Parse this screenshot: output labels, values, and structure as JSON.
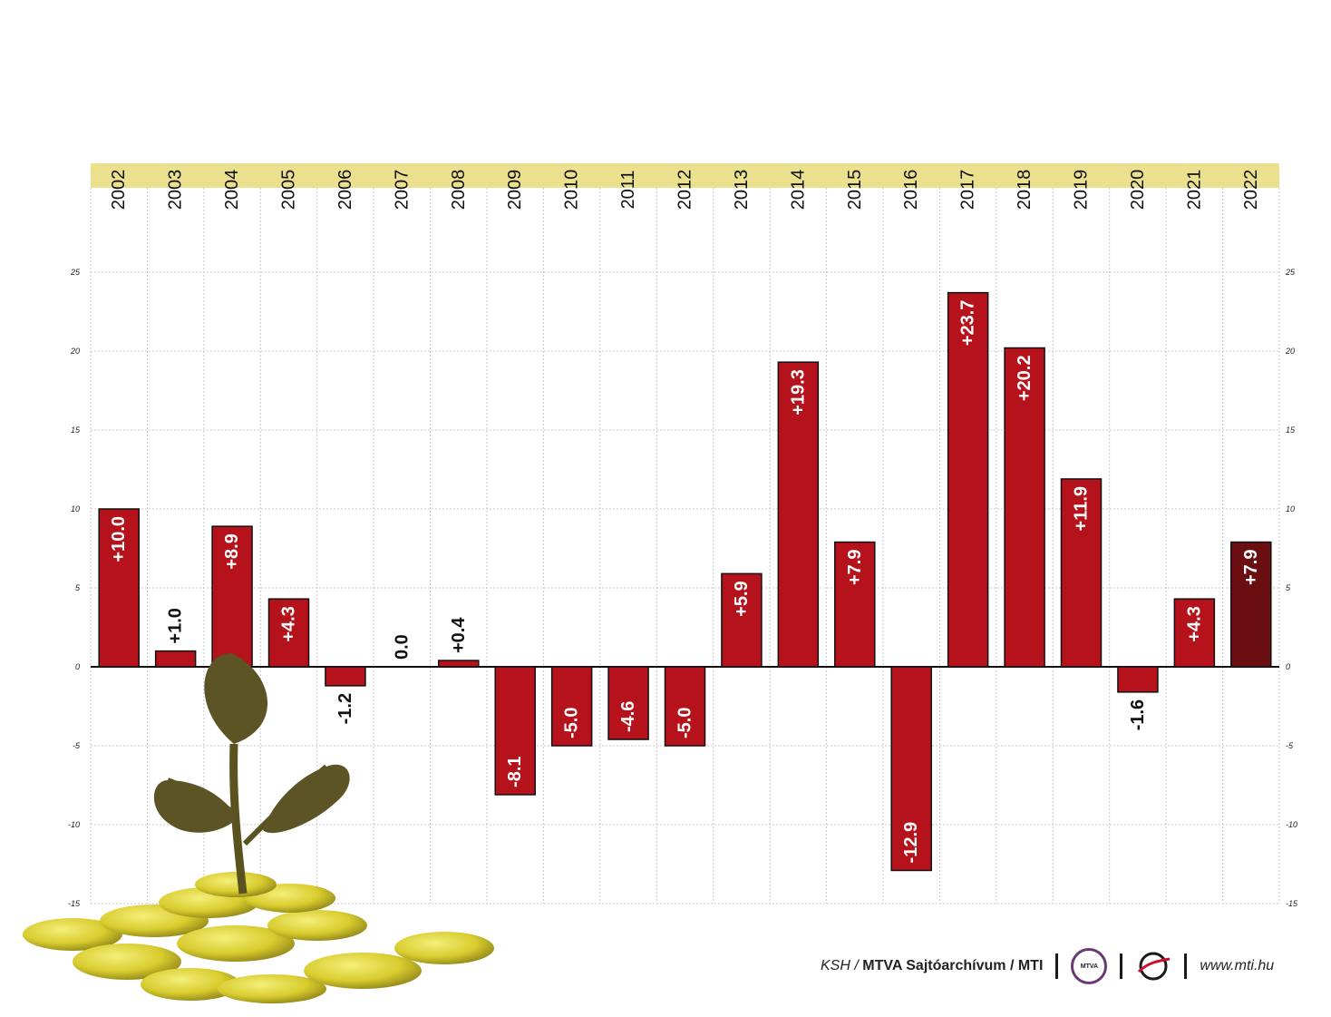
{
  "chart_data": {
    "type": "bar",
    "title": "",
    "xlabel": "",
    "ylabel": "",
    "ylim": [
      -15,
      25
    ],
    "yticks": [
      25,
      20,
      15,
      10,
      5,
      0,
      -5,
      -10,
      -15
    ],
    "categories": [
      "2002",
      "2003",
      "2004",
      "2005",
      "2006",
      "2007",
      "2008",
      "2009",
      "2010",
      "2011",
      "2012",
      "2013",
      "2014",
      "2015",
      "2016",
      "2017",
      "2018",
      "2019",
      "2020",
      "2021",
      "2022"
    ],
    "values": [
      10.0,
      1.0,
      8.9,
      4.3,
      -1.2,
      0.0,
      0.4,
      -8.1,
      -5.0,
      -4.6,
      -5.0,
      5.9,
      19.3,
      7.9,
      -12.9,
      23.7,
      20.2,
      11.9,
      -1.6,
      4.3,
      7.9
    ],
    "labels": [
      "+10.0",
      "+1.0",
      "+8.9",
      "+4.3",
      "-1.2",
      "0.0",
      "+0.4",
      "-8.1",
      "-5.0",
      "-4.6",
      "-5.0",
      "+5.9",
      "+19.3",
      "+7.9",
      "-12.9",
      "+23.7",
      "+20.2",
      "+11.9",
      "-1.6",
      "+4.3",
      "+7.9"
    ],
    "highlight_index": 20,
    "grid": true
  },
  "colors": {
    "bar": "#b5121b",
    "bar_highlight": "#6b0e12",
    "year_band": "#ebe08e",
    "grid": "#c8c8c8"
  },
  "footer": {
    "source": "KSH /",
    "archive": "MTVA Sajtóarchívum / MTI",
    "mtva_logo": "MTVA",
    "website": "www.mti.hu"
  }
}
